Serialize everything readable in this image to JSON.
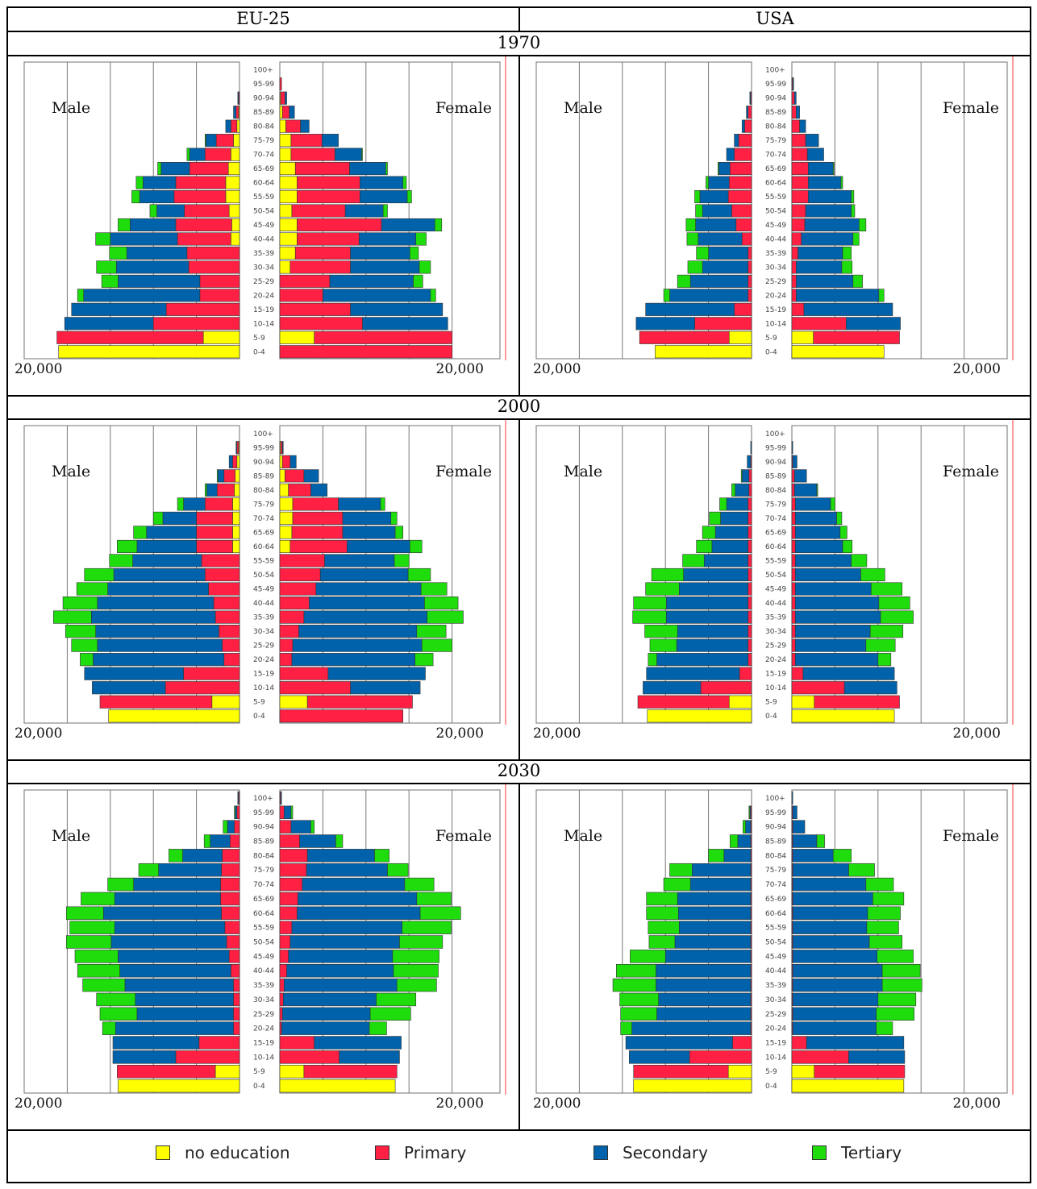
{
  "header": {
    "left": "EU-25",
    "right": "USA"
  },
  "years": [
    "1970",
    "2000",
    "2030"
  ],
  "labels": {
    "male": "Male",
    "female": "Female",
    "axis_end": "20,000"
  },
  "legend": [
    {
      "key": "none",
      "label": "no education",
      "color": "#ffff00"
    },
    {
      "key": "prim",
      "label": "Primary",
      "color": "#ff2044"
    },
    {
      "key": "sec",
      "label": "Secondary",
      "color": "#0062aa"
    },
    {
      "key": "ter",
      "label": "Tertiary",
      "color": "#1fdd0c"
    }
  ],
  "chart_data": [
    {
      "type": "bar",
      "region": "EU-25",
      "year": "1970",
      "categories": [
        "0-4",
        "5-9",
        "10-14",
        "15-19",
        "20-24",
        "25-29",
        "30-34",
        "35-39",
        "40-44",
        "45-49",
        "50-54",
        "55-59",
        "60-64",
        "65-69",
        "70-74",
        "75-79",
        "80-84",
        "85-89",
        "90-94",
        "95-99",
        "100+"
      ],
      "male": {
        "none": [
          21000,
          4200,
          0,
          0,
          0,
          0,
          0,
          0,
          1000,
          900,
          1200,
          1600,
          1600,
          1300,
          1000,
          700,
          300,
          100,
          0,
          0,
          0
        ],
        "prim": [
          0,
          17000,
          10000,
          8500,
          4600,
          4600,
          5900,
          6100,
          6200,
          6500,
          5200,
          6000,
          5800,
          4500,
          3000,
          2000,
          700,
          300,
          100,
          0,
          0
        ],
        "sec": [
          0,
          0,
          10300,
          11000,
          13500,
          9500,
          8400,
          7000,
          7800,
          5300,
          3200,
          4000,
          3800,
          3300,
          1800,
          1200,
          600,
          300,
          100,
          0,
          0
        ],
        "ter": [
          0,
          0,
          0,
          0,
          700,
          1900,
          2300,
          2000,
          1700,
          1400,
          800,
          900,
          800,
          400,
          300,
          100,
          0,
          0,
          0,
          0,
          0
        ]
      },
      "female": {
        "none": [
          0,
          4000,
          0,
          0,
          0,
          0,
          1200,
          1800,
          2000,
          2000,
          1400,
          2000,
          2000,
          1800,
          1300,
          1300,
          700,
          300,
          100,
          0,
          0
        ],
        "prim": [
          20000,
          16000,
          9600,
          8200,
          5000,
          5800,
          7000,
          6400,
          7200,
          9800,
          6200,
          7300,
          7300,
          6300,
          5100,
          3600,
          1700,
          800,
          500,
          200,
          0
        ],
        "sec": [
          0,
          0,
          9900,
          10700,
          12500,
          9700,
          8000,
          6900,
          6600,
          6200,
          4400,
          5500,
          5000,
          4200,
          3100,
          1900,
          1000,
          600,
          200,
          0,
          0
        ],
        "ter": [
          0,
          0,
          0,
          0,
          600,
          1100,
          1300,
          1000,
          1200,
          800,
          500,
          500,
          400,
          200,
          100,
          0,
          0,
          0,
          0,
          0,
          0
        ]
      }
    },
    {
      "type": "bar",
      "region": "USA",
      "year": "1970",
      "categories": [
        "0-4",
        "5-9",
        "10-14",
        "15-19",
        "20-24",
        "25-29",
        "30-34",
        "35-39",
        "40-44",
        "45-49",
        "50-54",
        "55-59",
        "60-64",
        "65-69",
        "70-74",
        "75-79",
        "80-84",
        "85-89",
        "90-94",
        "95-99",
        "100+"
      ],
      "male": {
        "none": [
          11200,
          2600,
          0,
          0,
          0,
          0,
          0,
          0,
          0,
          0,
          0,
          0,
          0,
          0,
          0,
          0,
          0,
          0,
          0,
          0,
          0
        ],
        "prim": [
          0,
          10400,
          6600,
          2000,
          400,
          400,
          400,
          400,
          1100,
          1800,
          2300,
          2700,
          2600,
          2500,
          2000,
          1500,
          800,
          400,
          100,
          0,
          0
        ],
        "sec": [
          0,
          0,
          6800,
          10300,
          9100,
          6700,
          5300,
          4600,
          5100,
          4700,
          3400,
          3300,
          2400,
          1300,
          900,
          500,
          300,
          200,
          100,
          0,
          0
        ],
        "ter": [
          0,
          0,
          0,
          0,
          700,
          1500,
          1700,
          1400,
          1300,
          1100,
          800,
          600,
          300,
          100,
          0,
          0,
          0,
          0,
          0,
          0,
          0
        ]
      },
      "female": {
        "none": [
          10700,
          2500,
          0,
          0,
          0,
          0,
          0,
          0,
          0,
          0,
          0,
          0,
          0,
          0,
          0,
          0,
          0,
          0,
          0,
          0,
          0
        ],
        "prim": [
          0,
          10000,
          6300,
          1400,
          500,
          500,
          500,
          700,
          1100,
          1500,
          1600,
          1900,
          1900,
          1900,
          1800,
          1600,
          900,
          500,
          300,
          100,
          0
        ],
        "sec": [
          0,
          0,
          6300,
          10300,
          9600,
          6600,
          5300,
          5200,
          6000,
          6300,
          5300,
          5000,
          3800,
          2900,
          1900,
          1500,
          700,
          400,
          200,
          100,
          0
        ],
        "ter": [
          0,
          0,
          0,
          0,
          600,
          1100,
          1200,
          1000,
          700,
          800,
          400,
          300,
          200,
          100,
          0,
          0,
          0,
          0,
          0,
          0,
          0
        ]
      }
    },
    {
      "type": "bar",
      "region": "EU-25",
      "year": "2000",
      "categories": [
        "0-4",
        "5-9",
        "10-14",
        "15-19",
        "20-24",
        "25-29",
        "30-34",
        "35-39",
        "40-44",
        "45-49",
        "50-54",
        "55-59",
        "60-64",
        "65-69",
        "70-74",
        "75-79",
        "80-84",
        "85-89",
        "90-94",
        "95-99",
        "100+"
      ],
      "male": {
        "none": [
          15200,
          3200,
          0,
          0,
          0,
          0,
          0,
          0,
          0,
          0,
          0,
          0,
          800,
          800,
          800,
          800,
          600,
          500,
          300,
          100,
          0
        ],
        "prim": [
          0,
          13000,
          8600,
          6500,
          1800,
          2000,
          2400,
          2800,
          3000,
          3600,
          4000,
          4400,
          4200,
          4200,
          4200,
          3200,
          2000,
          1300,
          500,
          200,
          0
        ],
        "sec": [
          0,
          0,
          8500,
          11500,
          15200,
          14500,
          14300,
          14400,
          13500,
          11700,
          10600,
          8000,
          6900,
          5800,
          3900,
          2500,
          1200,
          700,
          400,
          100,
          0
        ],
        "ter": [
          0,
          0,
          0,
          0,
          1500,
          3000,
          3500,
          4400,
          4000,
          3600,
          3400,
          2700,
          2300,
          1500,
          1100,
          700,
          200,
          100,
          0,
          0,
          0
        ]
      },
      "female": {
        "none": [
          0,
          3200,
          0,
          0,
          0,
          0,
          0,
          0,
          0,
          0,
          0,
          0,
          1200,
          1400,
          1500,
          1500,
          1000,
          600,
          300,
          100,
          0
        ],
        "prim": [
          14300,
          12200,
          8200,
          5600,
          1400,
          1500,
          2200,
          2800,
          3400,
          4200,
          4700,
          5200,
          6600,
          5900,
          5800,
          5300,
          2600,
          2200,
          900,
          200,
          0
        ],
        "sec": [
          0,
          0,
          8100,
          11300,
          14300,
          15000,
          13700,
          14300,
          13400,
          12200,
          10200,
          8100,
          7300,
          6100,
          5600,
          4900,
          1900,
          1700,
          700,
          100,
          0
        ],
        "ter": [
          0,
          0,
          0,
          0,
          2100,
          3500,
          3400,
          4200,
          3900,
          3000,
          2600,
          1700,
          1400,
          900,
          700,
          500,
          0,
          0,
          0,
          0,
          0
        ]
      }
    },
    {
      "type": "bar",
      "region": "USA",
      "year": "2000",
      "categories": [
        "0-4",
        "5-9",
        "10-14",
        "15-19",
        "20-24",
        "25-29",
        "30-34",
        "35-39",
        "40-44",
        "45-49",
        "50-54",
        "55-59",
        "60-64",
        "65-69",
        "70-74",
        "75-79",
        "80-84",
        "85-89",
        "90-94",
        "95-99",
        "100+"
      ],
      "male": {
        "none": [
          12100,
          2600,
          0,
          0,
          0,
          0,
          0,
          0,
          0,
          0,
          0,
          0,
          0,
          0,
          0,
          0,
          0,
          0,
          0,
          0,
          0
        ],
        "prim": [
          0,
          10600,
          5900,
          1400,
          400,
          400,
          400,
          400,
          400,
          400,
          400,
          400,
          400,
          400,
          400,
          400,
          300,
          300,
          100,
          0,
          0
        ],
        "sec": [
          0,
          0,
          6700,
          10800,
          10600,
          8300,
          8200,
          9500,
          9500,
          8000,
          7500,
          5100,
          4200,
          3800,
          3200,
          2500,
          1600,
          800,
          400,
          100,
          0
        ],
        "ter": [
          0,
          0,
          0,
          0,
          1000,
          3100,
          3800,
          3900,
          3800,
          3900,
          3700,
          2500,
          1800,
          1500,
          1300,
          800,
          400,
          100,
          0,
          0,
          0
        ]
      },
      "female": {
        "none": [
          11900,
          2600,
          0,
          0,
          0,
          0,
          0,
          0,
          0,
          0,
          0,
          0,
          0,
          0,
          0,
          0,
          0,
          0,
          0,
          0,
          0
        ],
        "prim": [
          0,
          9900,
          6100,
          1300,
          400,
          400,
          400,
          400,
          400,
          400,
          400,
          400,
          400,
          400,
          400,
          400,
          300,
          300,
          100,
          0,
          0
        ],
        "sec": [
          0,
          0,
          6100,
          10600,
          9600,
          8200,
          8700,
          9900,
          9700,
          8800,
          7600,
          6500,
          5500,
          5200,
          4800,
          4100,
          2600,
          1400,
          500,
          100,
          0
        ],
        "ter": [
          0,
          0,
          0,
          0,
          1500,
          3400,
          3800,
          3800,
          3600,
          3600,
          2800,
          1800,
          1100,
          800,
          600,
          500,
          100,
          0,
          0,
          0,
          0
        ]
      }
    },
    {
      "type": "bar",
      "region": "EU-25",
      "year": "2030",
      "categories": [
        "0-4",
        "5-9",
        "10-14",
        "15-19",
        "20-24",
        "25-29",
        "30-34",
        "35-39",
        "40-44",
        "45-49",
        "50-54",
        "55-59",
        "60-64",
        "65-69",
        "70-74",
        "75-79",
        "80-84",
        "85-89",
        "90-94",
        "95-99",
        "100+"
      ],
      "male": {
        "none": [
          14100,
          2800,
          0,
          0,
          0,
          0,
          0,
          0,
          0,
          0,
          0,
          0,
          0,
          0,
          0,
          0,
          0,
          0,
          0,
          0,
          0
        ],
        "prim": [
          0,
          11400,
          7400,
          4700,
          700,
          700,
          700,
          700,
          1000,
          1200,
          1500,
          1700,
          2100,
          2200,
          2200,
          2100,
          2000,
          1100,
          600,
          300,
          100
        ],
        "sec": [
          0,
          0,
          7300,
          10000,
          13700,
          11200,
          11400,
          12600,
          12900,
          12900,
          13400,
          12800,
          13700,
          12300,
          10100,
          7300,
          4600,
          2300,
          800,
          200,
          100
        ],
        "ter": [
          0,
          0,
          0,
          0,
          1500,
          4300,
          4500,
          4900,
          4900,
          5000,
          5200,
          5200,
          4300,
          3900,
          3000,
          2300,
          1600,
          700,
          500,
          100,
          0
        ]
      },
      "female": {
        "none": [
          13400,
          2800,
          0,
          0,
          0,
          0,
          0,
          0,
          0,
          0,
          0,
          0,
          0,
          0,
          0,
          0,
          0,
          0,
          0,
          0,
          0
        ],
        "prim": [
          0,
          10800,
          6900,
          4000,
          200,
          300,
          400,
          500,
          800,
          1000,
          1200,
          1400,
          2000,
          2100,
          2600,
          3100,
          3200,
          2300,
          1300,
          500,
          100
        ],
        "sec": [
          0,
          0,
          7000,
          10100,
          10200,
          10200,
          10800,
          13100,
          12400,
          12100,
          12700,
          12800,
          14300,
          13800,
          11900,
          9400,
          7800,
          4200,
          2300,
          800,
          100
        ],
        "ter": [
          0,
          0,
          0,
          0,
          2000,
          4700,
          4600,
          4600,
          5200,
          5400,
          5000,
          5700,
          4700,
          4000,
          3400,
          2400,
          1700,
          800,
          400,
          200,
          0
        ]
      }
    },
    {
      "type": "bar",
      "region": "USA",
      "year": "2030",
      "categories": [
        "0-4",
        "5-9",
        "10-14",
        "15-19",
        "20-24",
        "25-29",
        "30-34",
        "35-39",
        "40-44",
        "45-49",
        "50-54",
        "55-59",
        "60-64",
        "65-69",
        "70-74",
        "75-79",
        "80-84",
        "85-89",
        "90-94",
        "95-99",
        "100+"
      ],
      "male": {
        "none": [
          13700,
          2700,
          0,
          0,
          0,
          0,
          0,
          0,
          0,
          0,
          0,
          0,
          0,
          0,
          0,
          0,
          0,
          0,
          0,
          0,
          0
        ],
        "prim": [
          0,
          11000,
          7200,
          2200,
          100,
          100,
          100,
          100,
          100,
          100,
          100,
          100,
          100,
          100,
          100,
          100,
          100,
          100,
          100,
          100,
          0
        ],
        "sec": [
          0,
          0,
          7000,
          12400,
          13800,
          10900,
          10700,
          11000,
          11000,
          9900,
          8800,
          8300,
          8400,
          8500,
          7000,
          6800,
          3100,
          1500,
          600,
          100,
          0
        ],
        "ter": [
          0,
          0,
          0,
          0,
          1300,
          4200,
          4500,
          5000,
          4600,
          4100,
          3000,
          3600,
          3700,
          3600,
          3100,
          2600,
          1800,
          900,
          300,
          100,
          0
        ]
      },
      "female": {
        "none": [
          13000,
          2600,
          0,
          0,
          0,
          0,
          0,
          0,
          0,
          0,
          0,
          0,
          0,
          0,
          0,
          0,
          0,
          0,
          0,
          0,
          0
        ],
        "prim": [
          0,
          10500,
          6600,
          1700,
          100,
          100,
          100,
          100,
          100,
          100,
          100,
          100,
          100,
          100,
          100,
          100,
          100,
          100,
          100,
          100,
          0
        ],
        "sec": [
          0,
          0,
          6500,
          11300,
          9700,
          9700,
          9900,
          10400,
          10400,
          9800,
          8900,
          8600,
          8700,
          9300,
          8500,
          6500,
          4700,
          2800,
          1400,
          500,
          100
        ],
        "ter": [
          0,
          0,
          0,
          0,
          1900,
          4400,
          4400,
          4600,
          4400,
          4200,
          3800,
          3700,
          3800,
          3600,
          3200,
          3000,
          2100,
          900,
          0,
          0,
          0
        ]
      }
    }
  ]
}
